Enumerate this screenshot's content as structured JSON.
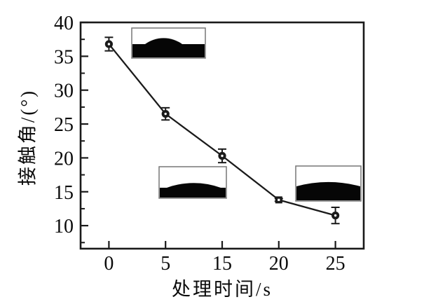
{
  "figure": {
    "background": "#ffffff"
  },
  "chart_data": {
    "type": "line",
    "title": "",
    "xlabel": "处理时间/s",
    "ylabel": "接触角/(°)",
    "x_tick_labels": [
      "0",
      "5",
      "15",
      "20",
      "25"
    ],
    "x_values_s": [
      0,
      5,
      15,
      20,
      25
    ],
    "series": [
      {
        "name": "contact-angle-vs-treatment-time",
        "values": [
          36.8,
          26.5,
          20.3,
          13.8,
          11.5
        ],
        "errors": [
          1.0,
          0.9,
          1.0,
          0.2,
          1.2
        ],
        "markers": [
          "circle",
          "circle",
          "circle",
          "square",
          "circle"
        ]
      }
    ],
    "ylim": [
      6.6,
      40
    ],
    "y_tick_values": [
      10,
      15,
      20,
      25,
      30,
      35,
      40
    ],
    "y_tick_labels": [
      "10",
      "15",
      "20",
      "25",
      "30",
      "35",
      "40"
    ],
    "y_minor_ticks": [
      7.5,
      12.5,
      17.5,
      22.5,
      27.5,
      32.5,
      37.5
    ],
    "grid": false,
    "legend": false,
    "colors": {
      "line": "#1a1a1a",
      "axis": "#1a1a1a",
      "tick_text": "#0a0a0a",
      "inset_border": "#777777",
      "droplet_fill": "#060606"
    },
    "insets": [
      {
        "name": "droplet-photo-high-angle",
        "depicts": "sessile water drop, large (~37°) contact angle"
      },
      {
        "name": "droplet-photo-medium-angle",
        "depicts": "sessile water drop, medium (~20°) contact angle"
      },
      {
        "name": "droplet-photo-low-angle",
        "depicts": "sessile water drop, small (~11°) contact angle"
      }
    ]
  }
}
